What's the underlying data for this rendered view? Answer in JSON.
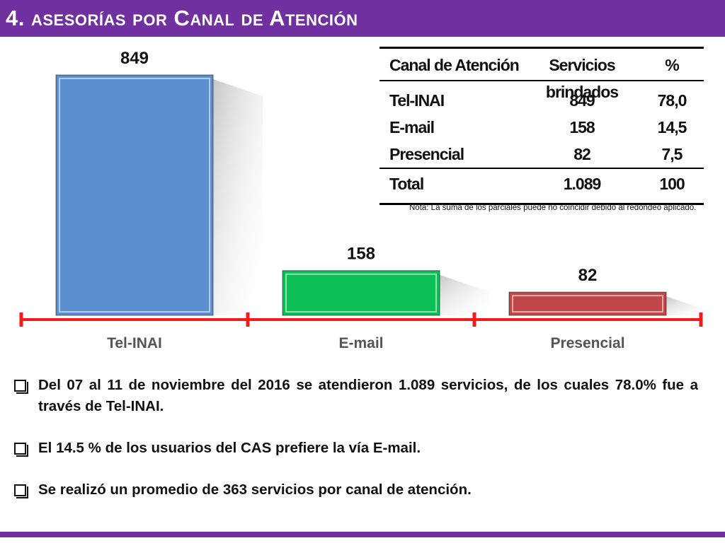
{
  "header": {
    "title": "4. asesorías por Canal de Atención"
  },
  "colors": {
    "header": "#7030a0",
    "axis": "#ee1c1c",
    "bars": [
      "#5b8fcf",
      "#0cbf55",
      "#bf4747"
    ]
  },
  "chart_data": {
    "type": "bar",
    "categories": [
      "Tel-INAI",
      "E-mail",
      "Presencial"
    ],
    "values": [
      849,
      158,
      82
    ],
    "data_labels": [
      "849",
      "158",
      "82"
    ],
    "title": "",
    "xlabel": "",
    "ylabel": "",
    "ylim": [
      0,
      849
    ],
    "grid": false
  },
  "table": {
    "headers": [
      "Canal de Atención",
      "Servicios brindados",
      "%"
    ],
    "rows": [
      [
        "Tel-INAI",
        "849",
        "78,0"
      ],
      [
        "E-mail",
        "158",
        "14,5"
      ],
      [
        "Presencial",
        "82",
        "7,5"
      ]
    ],
    "total": [
      "Total",
      "1.089",
      "100"
    ],
    "note": "Nota: La suma de los parciales puede no coincidir debido al redondeo aplicado."
  },
  "bullets": [
    "Del 07 al 11 de noviembre del 2016 se atendieron 1.089 servicios, de los cuales 78.0% fue a través de Tel-INAI.",
    "El 14.5 % de los usuarios del CAS prefiere la vía E-mail.",
    "Se realizó un promedio de 363 servicios por canal de atención."
  ]
}
